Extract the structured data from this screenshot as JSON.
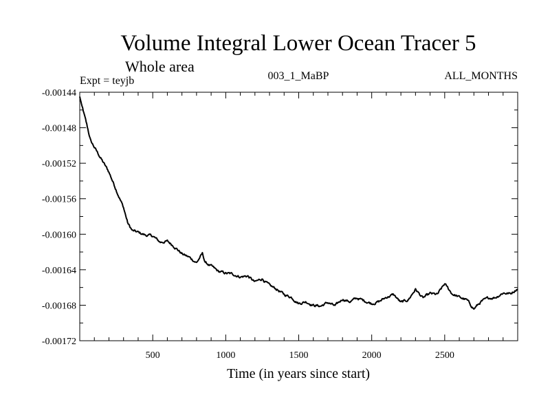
{
  "chart_data": {
    "type": "line",
    "title": "Volume Integral Lower Ocean Tracer 5",
    "subtitle": "Whole area",
    "annotations": {
      "left": "Expt = teyjb",
      "center": "003_1_MaBP",
      "right": "ALL_MONTHS"
    },
    "xlabel": "Time (in years since start)",
    "ylabel": "",
    "xlim": [
      0,
      3000
    ],
    "ylim": [
      -0.00172,
      -0.00144
    ],
    "x_ticks": [
      500,
      1000,
      1500,
      2000,
      2500
    ],
    "x_tick_labels": [
      "500",
      "1000",
      "1500",
      "2000",
      "2500"
    ],
    "y_ticks": [
      -0.00144,
      -0.00148,
      -0.00152,
      -0.00156,
      -0.0016,
      -0.00164,
      -0.00168,
      -0.00172
    ],
    "y_tick_labels": [
      "-0.00144",
      "-0.00148",
      "-0.00152",
      "-0.00156",
      "-0.00160",
      "-0.00164",
      "-0.00168",
      "-0.00172"
    ],
    "grid": false,
    "series": [
      {
        "name": "Tracer 5",
        "x": [
          0,
          25,
          50,
          75,
          100,
          150,
          200,
          250,
          300,
          330,
          360,
          400,
          450,
          500,
          550,
          600,
          650,
          700,
          750,
          800,
          840,
          860,
          900,
          950,
          1000,
          1050,
          1100,
          1150,
          1200,
          1250,
          1300,
          1350,
          1400,
          1450,
          1500,
          1550,
          1600,
          1650,
          1700,
          1750,
          1800,
          1850,
          1900,
          1950,
          2000,
          2050,
          2100,
          2150,
          2200,
          2250,
          2300,
          2350,
          2400,
          2450,
          2500,
          2550,
          2600,
          2650,
          2700,
          2750,
          2800,
          2850,
          2900,
          2950,
          3000
        ],
        "values": [
          -0.001445,
          -0.001462,
          -0.001478,
          -0.001495,
          -0.001502,
          -0.001516,
          -0.00153,
          -0.00155,
          -0.00157,
          -0.001588,
          -0.001596,
          -0.001598,
          -0.001601,
          -0.001602,
          -0.001609,
          -0.001608,
          -0.001614,
          -0.001622,
          -0.001626,
          -0.001632,
          -0.001622,
          -0.001632,
          -0.001636,
          -0.001642,
          -0.001644,
          -0.001645,
          -0.001648,
          -0.001647,
          -0.001654,
          -0.00165,
          -0.001658,
          -0.001662,
          -0.001668,
          -0.001671,
          -0.001678,
          -0.001676,
          -0.00168,
          -0.001681,
          -0.001677,
          -0.001681,
          -0.001673,
          -0.001676,
          -0.001672,
          -0.001675,
          -0.001678,
          -0.001676,
          -0.001671,
          -0.001668,
          -0.001677,
          -0.001674,
          -0.001662,
          -0.001672,
          -0.001667,
          -0.001668,
          -0.001656,
          -0.001667,
          -0.001671,
          -0.001674,
          -0.001684,
          -0.001676,
          -0.001672,
          -0.001671,
          -0.001666,
          -0.001667,
          -0.001661
        ]
      }
    ],
    "line_color": "#000000"
  }
}
